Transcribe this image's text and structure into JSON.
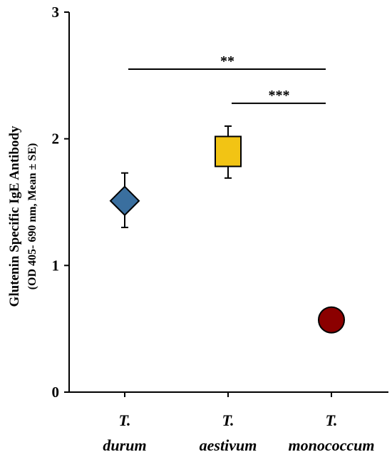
{
  "chart_data": {
    "type": "scatter",
    "title": "",
    "ylabel": "Glutenin Specific IgE Antibody",
    "ylabel_sub": "(OD 405- 690 nm, Mean ± SE)",
    "xlabel": "",
    "ylim": [
      0,
      3
    ],
    "yticks": [
      "0",
      "1",
      "2",
      "3"
    ],
    "categories": [
      {
        "line1": "T.",
        "line2": "durum"
      },
      {
        "line1": "T.",
        "line2": "aestivum"
      },
      {
        "line1": "T.",
        "line2": "monococcum"
      }
    ],
    "points": [
      {
        "category": "T. durum",
        "mean": 1.51,
        "se_low": 1.3,
        "se_high": 1.73,
        "marker": "diamond",
        "color": "#3a6f9f"
      },
      {
        "category": "T. aestivum",
        "mean": 1.9,
        "se_low": 1.69,
        "se_high": 2.1,
        "marker": "square",
        "color": "#f2c414"
      },
      {
        "category": "T. monococcum",
        "mean": 0.57,
        "se_low": 0.57,
        "se_high": 0.57,
        "marker": "circle",
        "color": "#8b0000"
      }
    ],
    "significance": [
      {
        "from": 0,
        "to": 2,
        "label": "**",
        "y": 2.55
      },
      {
        "from": 1,
        "to": 2,
        "label": "***",
        "y": 2.28
      }
    ],
    "grid": false,
    "legend": "none"
  }
}
